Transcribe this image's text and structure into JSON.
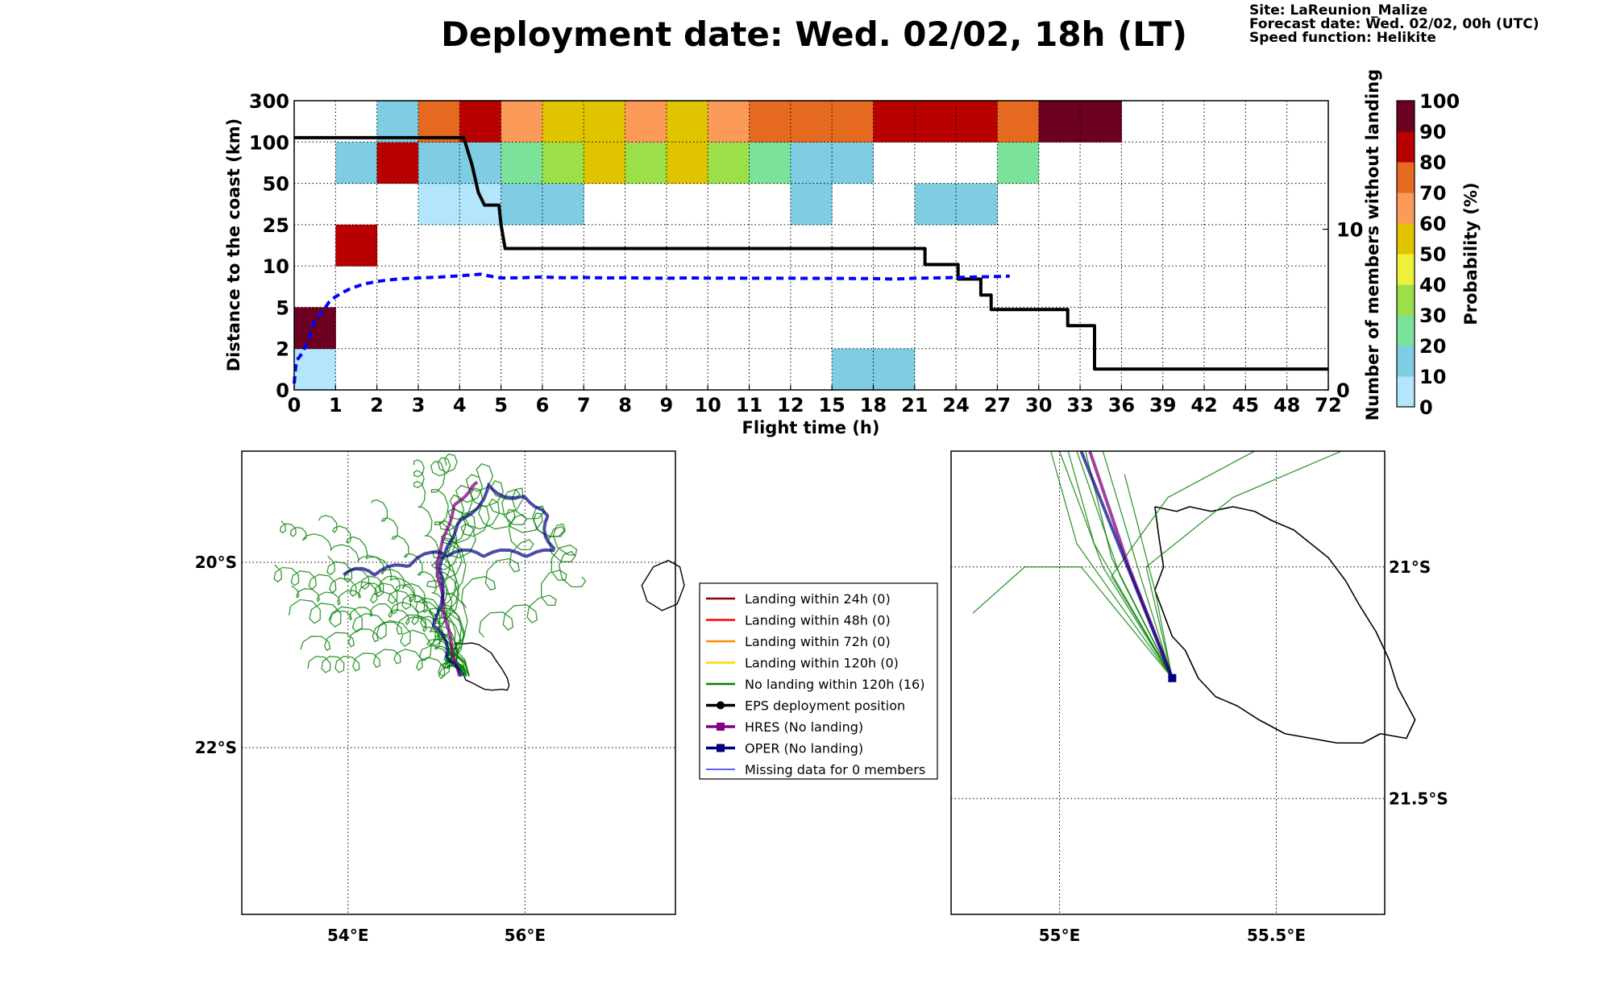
{
  "header": {
    "title": "Deployment date: Wed. 02/02, 18h (LT)",
    "site": "Site: LaReunion_Malize",
    "forecast": "Forecast date: Wed. 02/02, 00h (UTC)",
    "speed": "Speed function: Helikite"
  },
  "chart_data": [
    {
      "type": "heatmap",
      "title": "Deployment date: Wed. 02/02, 18h (LT)",
      "xlabel": "Flight time (h)",
      "ylabel": "Distance to the coast (km)",
      "y2label": "Number of members without landing",
      "colorbar_label": "Probability (%)",
      "x_ticks": [
        "0",
        "1",
        "2",
        "3",
        "4",
        "5",
        "6",
        "7",
        "8",
        "9",
        "10",
        "11",
        "12",
        "15",
        "18",
        "21",
        "24",
        "27",
        "30",
        "33",
        "36",
        "39",
        "42",
        "45",
        "48",
        "72"
      ],
      "y_ticks": [
        "0",
        "2",
        "5",
        "10",
        "25",
        "50",
        "100",
        "300"
      ],
      "y2_ticks": [
        "0",
        "10"
      ],
      "y2_range": [
        0,
        18
      ],
      "colorbar_ticks": [
        "0",
        "10",
        "20",
        "30",
        "40",
        "50",
        "60",
        "70",
        "80",
        "90",
        "100"
      ],
      "colorbar_colors": [
        "#b3e5fc",
        "#7ecde3",
        "#7be29a",
        "#9be048",
        "#f0f03c",
        "#e0c400",
        "#fc9a5a",
        "#e56a20",
        "#b80000",
        "#6b0020"
      ],
      "grid": true,
      "cells": [
        {
          "x": 0,
          "y": 0,
          "p": 5
        },
        {
          "x": 0,
          "y": 1,
          "p": 95
        },
        {
          "x": 1,
          "y": 3,
          "p": 85
        },
        {
          "x": 1,
          "y": 5,
          "p": 15
        },
        {
          "x": 2,
          "y": 5,
          "p": 85
        },
        {
          "x": 2,
          "y": 6,
          "p": 15
        },
        {
          "x": 3,
          "y": 4,
          "p": 5
        },
        {
          "x": 3,
          "y": 5,
          "p": 15
        },
        {
          "x": 3,
          "y": 6,
          "p": 75
        },
        {
          "x": 4,
          "y": 4,
          "p": 5
        },
        {
          "x": 4,
          "y": 5,
          "p": 15
        },
        {
          "x": 4,
          "y": 6,
          "p": 85
        },
        {
          "x": 5,
          "y": 4,
          "p": 15
        },
        {
          "x": 5,
          "y": 5,
          "p": 25
        },
        {
          "x": 5,
          "y": 6,
          "p": 65
        },
        {
          "x": 6,
          "y": 4,
          "p": 15
        },
        {
          "x": 6,
          "y": 5,
          "p": 35
        },
        {
          "x": 6,
          "y": 6,
          "p": 55
        },
        {
          "x": 7,
          "y": 5,
          "p": 55
        },
        {
          "x": 7,
          "y": 6,
          "p": 55
        },
        {
          "x": 8,
          "y": 5,
          "p": 35
        },
        {
          "x": 8,
          "y": 6,
          "p": 65
        },
        {
          "x": 9,
          "y": 5,
          "p": 55
        },
        {
          "x": 9,
          "y": 6,
          "p": 55
        },
        {
          "x": 10,
          "y": 5,
          "p": 35
        },
        {
          "x": 10,
          "y": 6,
          "p": 65
        },
        {
          "x": 11,
          "y": 5,
          "p": 25
        },
        {
          "x": 11,
          "y": 6,
          "p": 75
        },
        {
          "x": 12,
          "y": 4,
          "p": 15
        },
        {
          "x": 12,
          "y": 5,
          "p": 15
        },
        {
          "x": 12,
          "y": 6,
          "p": 75
        },
        {
          "x": 13,
          "y": 0,
          "p": 15
        },
        {
          "x": 13,
          "y": 5,
          "p": 15
        },
        {
          "x": 13,
          "y": 6,
          "p": 75
        },
        {
          "x": 14,
          "y": 0,
          "p": 15
        },
        {
          "x": 14,
          "y": 6,
          "p": 85
        },
        {
          "x": 15,
          "y": 4,
          "p": 15
        },
        {
          "x": 15,
          "y": 6,
          "p": 85
        },
        {
          "x": 16,
          "y": 4,
          "p": 15
        },
        {
          "x": 16,
          "y": 6,
          "p": 85
        },
        {
          "x": 17,
          "y": 5,
          "p": 25
        },
        {
          "x": 17,
          "y": 6,
          "p": 75
        },
        {
          "x": 18,
          "y": 6,
          "p": 95
        },
        {
          "x": 19,
          "y": 6,
          "p": 95
        }
      ],
      "series": [
        {
          "name": "Number of members without landing",
          "style": "solid",
          "color": "#000000",
          "points": [
            [
              0,
              15.7
            ],
            [
              4.1,
              15.7
            ],
            [
              4.3,
              14
            ],
            [
              4.45,
              12.3
            ],
            [
              4.6,
              11.5
            ],
            [
              4.95,
              11.5
            ],
            [
              5.0,
              10.3
            ],
            [
              5.1,
              8.8
            ],
            [
              15.25,
              8.8
            ],
            [
              15.25,
              7.8
            ],
            [
              16.05,
              7.8
            ],
            [
              16.05,
              6.9
            ],
            [
              16.6,
              6.9
            ],
            [
              16.6,
              5.9
            ],
            [
              16.85,
              5.9
            ],
            [
              16.85,
              5.0
            ],
            [
              18.7,
              5.0
            ],
            [
              18.7,
              4.0
            ],
            [
              19.35,
              4.0
            ],
            [
              19.35,
              1.3
            ],
            [
              25,
              1.3
            ]
          ]
        },
        {
          "name": "",
          "style": "dashed",
          "color": "#0000ff",
          "points": [
            [
              0,
              0.4
            ],
            [
              0.05,
              1.8
            ],
            [
              0.2,
              2.3
            ],
            [
              0.35,
              3.2
            ],
            [
              0.5,
              4.4
            ],
            [
              0.7,
              4.9
            ],
            [
              0.85,
              5.5
            ],
            [
              1.0,
              5.8
            ],
            [
              1.2,
              6.1
            ],
            [
              1.4,
              6.35
            ],
            [
              1.7,
              6.6
            ],
            [
              2.0,
              6.75
            ],
            [
              2.3,
              6.85
            ],
            [
              2.6,
              6.92
            ],
            [
              3.0,
              6.97
            ],
            [
              3.5,
              7.02
            ],
            [
              4.0,
              7.1
            ],
            [
              4.5,
              7.2
            ],
            [
              4.8,
              7.05
            ],
            [
              5.0,
              6.97
            ],
            [
              5.5,
              6.98
            ],
            [
              6.0,
              7.03
            ],
            [
              6.5,
              6.98
            ],
            [
              7.0,
              7.0
            ],
            [
              7.5,
              6.97
            ],
            [
              8.0,
              6.98
            ],
            [
              8.5,
              6.96
            ],
            [
              9.0,
              6.95
            ],
            [
              9.5,
              6.97
            ],
            [
              10.0,
              6.96
            ],
            [
              10.5,
              6.96
            ],
            [
              11.0,
              6.95
            ],
            [
              12.0,
              6.95
            ],
            [
              13.0,
              6.94
            ],
            [
              14.0,
              6.93
            ],
            [
              14.5,
              6.9
            ],
            [
              15.0,
              6.95
            ],
            [
              15.5,
              6.97
            ],
            [
              16.0,
              7.0
            ],
            [
              16.5,
              7.03
            ],
            [
              17.0,
              7.06
            ],
            [
              17.3,
              7.08
            ]
          ]
        }
      ]
    },
    {
      "type": "map",
      "panel": "left",
      "lon_range": [
        52.8,
        57.7
      ],
      "lat_range": [
        -23.8,
        -18.8
      ],
      "lon_ticks": [
        "54°E",
        "56°E"
      ],
      "lat_ticks": [
        "20°S",
        "22°S"
      ]
    },
    {
      "type": "map",
      "panel": "right",
      "lon_range": [
        54.75,
        55.75
      ],
      "lat_range": [
        -21.75,
        -20.75
      ],
      "lon_ticks": [
        "55°E",
        "55.5°E"
      ],
      "lat_ticks": [
        "21°S",
        "21.5°S"
      ]
    }
  ],
  "legend": {
    "items": [
      {
        "label": "Landing within 24h (0)",
        "color": "#8b0000",
        "marker": "line"
      },
      {
        "label": "Landing within 48h (0)",
        "color": "#ff0000",
        "marker": "line"
      },
      {
        "label": "Landing within 72h (0)",
        "color": "#ff8c00",
        "marker": "line"
      },
      {
        "label": "Landing within 120h (0)",
        "color": "#ffd700",
        "marker": "line"
      },
      {
        "label": "No landing within 120h (16)",
        "color": "#008000",
        "marker": "line"
      },
      {
        "label": "EPS deployment position",
        "color": "#000000",
        "marker": "dot"
      },
      {
        "label": "HRES (No landing)",
        "color": "#800080",
        "marker": "square"
      },
      {
        "label": "OPER (No landing)",
        "color": "#000080",
        "marker": "square"
      },
      {
        "label": "Missing data for 0 members",
        "color": "#0000ff",
        "marker": "thin"
      }
    ]
  }
}
